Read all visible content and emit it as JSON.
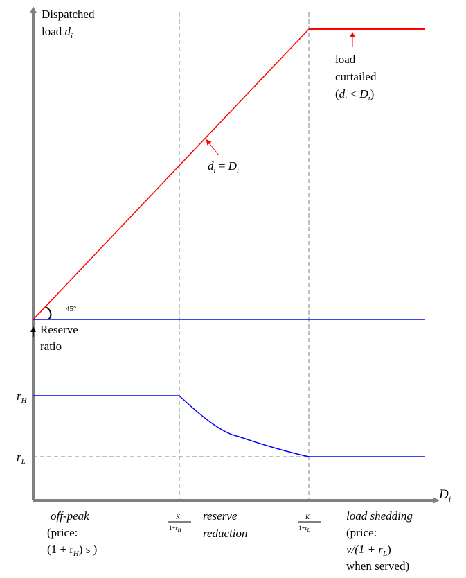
{
  "y_axis_top_label_line1": "Dispatched",
  "y_axis_top_label_line2_prefix": "load ",
  "y_axis_top_label_line2_var": "d",
  "y_axis_top_label_line2_sub": "i",
  "angle_label": "45°",
  "bottom_axis_label_line1": "Reserve",
  "bottom_axis_label_line2": "ratio",
  "x_axis_label_var": "D",
  "x_axis_label_sub": "i",
  "diag_label_var1": "d",
  "diag_label_sub1": "i",
  "diag_label_eq": " = ",
  "diag_label_var2": "D",
  "diag_label_sub2": "i",
  "curtail_line1": "load",
  "curtail_line2": "curtailed",
  "curtail_line3_open": "(",
  "curtail_line3_var1": "d",
  "curtail_line3_sub1": "i",
  "curtail_line3_lt": " < ",
  "curtail_line3_var2": "D",
  "curtail_line3_sub2": "i",
  "curtail_line3_close": ")",
  "rH_var": "r",
  "rH_sub": "H",
  "rL_var": "r",
  "rL_sub": "L",
  "tick1_num": "K",
  "tick1_den": "1+r",
  "tick1_den_sub": "H",
  "tick2_num": "K",
  "tick2_den": "1+r",
  "tick2_den_sub": "L",
  "region1_line1": "off-peak",
  "region1_line2": "(price:",
  "region1_line3": "(1 + r",
  "region1_line3_sub": "H",
  "region1_line3_end": ") s )",
  "region2_line1": "reserve",
  "region2_line2": "reduction",
  "region3_line1": "load shedding",
  "region3_line2": "(price:",
  "region3_line3": "v/(1 + r",
  "region3_line3_sub": "L",
  "region3_line3_end": ")",
  "region3_line4": "when served)",
  "colors": {
    "red": "#ff0000",
    "blue": "#0000ff",
    "axis": "#808080",
    "dash": "#808080"
  }
}
